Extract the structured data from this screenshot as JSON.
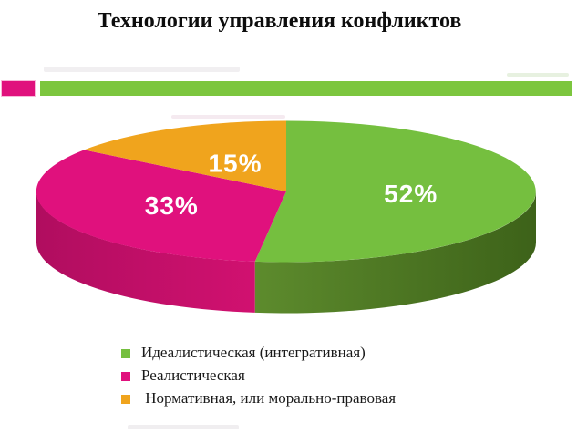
{
  "title": "Технологии управления конфликтов",
  "accent_bar": {
    "segments": [
      {
        "id": "magenta",
        "color": "#e0117d"
      },
      {
        "id": "green",
        "color": "#7cc63e"
      }
    ]
  },
  "chart_data": {
    "type": "pie",
    "style": "3d",
    "title": "Технологии управления конфликтов",
    "labels": [
      "Идеалистическая (интегративная)",
      "Реалистическая",
      " Нормативная, или морально-правовая"
    ],
    "values": [
      52,
      33,
      15
    ],
    "value_labels": [
      "52%",
      "33%",
      "15%"
    ],
    "colors": [
      "#75bf3f",
      "#e0117d",
      "#f0a41d"
    ],
    "side_colors": [
      [
        "#5d8b2d",
        "#3d6219"
      ],
      [
        "#b00d5f",
        "#d11170"
      ],
      [
        "#c07c10",
        "#c07c10"
      ]
    ],
    "slice_ids": [
      "idealistic",
      "realistic",
      "normative"
    ],
    "label_radius": [
      0.5,
      0.5,
      0.45
    ],
    "start_angle_deg": 0,
    "direction": "clockwise",
    "legend_position": "bottom"
  }
}
